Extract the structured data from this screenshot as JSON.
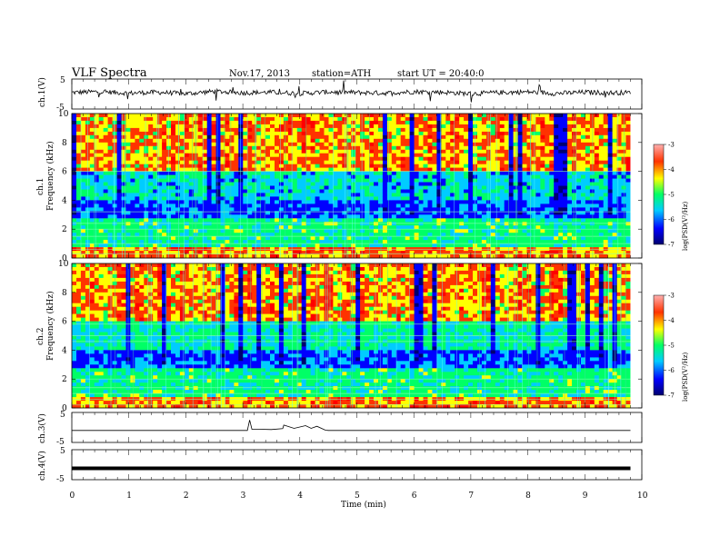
{
  "header": {
    "title": "VLF  Spectra",
    "date": "Nov.17, 2013",
    "station": "station=ATH",
    "start": "start  UT  =   20:40:0"
  },
  "colors": {
    "spectrogram_scale": [
      "#000070",
      "#0000ff",
      "#00ccff",
      "#00ff66",
      "#ffff00",
      "#ff3300",
      "#ff0000"
    ],
    "trace": "#000000"
  },
  "chart_data": [
    {
      "type": "line",
      "panel": "ch1-waveform",
      "ylabel": "ch.1(V)",
      "ylim": [
        -5,
        5
      ],
      "yticks": [
        "5",
        "-5"
      ],
      "xlim": [
        0,
        10
      ],
      "x": [
        0.0,
        0.5,
        1.0,
        1.5,
        2.0,
        2.5,
        3.0,
        3.5,
        4.0,
        4.5,
        5.0,
        5.5,
        6.0,
        6.5,
        7.0,
        7.5,
        8.0,
        8.5,
        9.0,
        9.5,
        9.8
      ],
      "values": [
        0.5,
        0.8,
        0.3,
        0.6,
        0.1,
        0.9,
        0.4,
        0.6,
        0.2,
        0.7,
        0.5,
        0.3,
        0.8,
        0.6,
        0.1,
        0.5,
        0.7,
        0.2,
        0.6,
        0.4,
        0.5
      ]
    },
    {
      "type": "heatmap",
      "panel": "ch1-spectrogram",
      "ylabel_lines": [
        "ch.1",
        "Frequency (kHz)"
      ],
      "ylim": [
        0,
        10
      ],
      "yticks": [
        "0",
        "2",
        "4",
        "6",
        "8",
        "10"
      ],
      "xlim": [
        0,
        10
      ],
      "colorbar_label": "log(PSD(V²/Hz)",
      "colorbar_ticks": [
        "-3",
        "-4",
        "-5",
        "-6",
        "-7"
      ],
      "colorbar_range": [
        -7,
        -3
      ]
    },
    {
      "type": "heatmap",
      "panel": "ch2-spectrogram",
      "ylabel_lines": [
        "ch.2",
        "Frequency (kHz)"
      ],
      "ylim": [
        0,
        10
      ],
      "yticks": [
        "0",
        "2",
        "4",
        "6",
        "8",
        "10"
      ],
      "xlim": [
        0,
        10
      ],
      "colorbar_label": "log(PSD(V²/Hz)",
      "colorbar_ticks": [
        "-3",
        "-4",
        "-5",
        "-6",
        "-7"
      ],
      "colorbar_range": [
        -7,
        -3
      ]
    },
    {
      "type": "line",
      "panel": "ch3-waveform",
      "ylabel": "ch.3(V)",
      "ylim": [
        -5,
        5
      ],
      "yticks": [
        "5",
        "-5"
      ],
      "xlim": [
        0,
        10
      ],
      "x": [
        0.0,
        3.0,
        3.08,
        3.12,
        3.16,
        3.3,
        3.5,
        3.7,
        3.72,
        3.9,
        4.1,
        4.2,
        4.3,
        4.45,
        4.5,
        6.0,
        9.8
      ],
      "values": [
        -1.0,
        -1.0,
        -1.0,
        2.5,
        -0.6,
        -0.6,
        -0.7,
        -0.4,
        0.8,
        -0.3,
        0.6,
        -0.3,
        0.4,
        -0.9,
        -1.0,
        -1.0,
        -1.0
      ]
    },
    {
      "type": "line",
      "panel": "ch4-waveform",
      "ylabel": "ch.4(V)",
      "ylim": [
        -5,
        5
      ],
      "yticks": [
        "5",
        "-5"
      ],
      "xlim": [
        0,
        10
      ],
      "xlabel": "Time  (min)",
      "xticks": [
        "0",
        "1",
        "2",
        "3",
        "4",
        "5",
        "6",
        "7",
        "8",
        "9",
        "10"
      ],
      "x": [
        0.0,
        9.8
      ],
      "values": [
        -1.2,
        -1.2
      ]
    }
  ]
}
